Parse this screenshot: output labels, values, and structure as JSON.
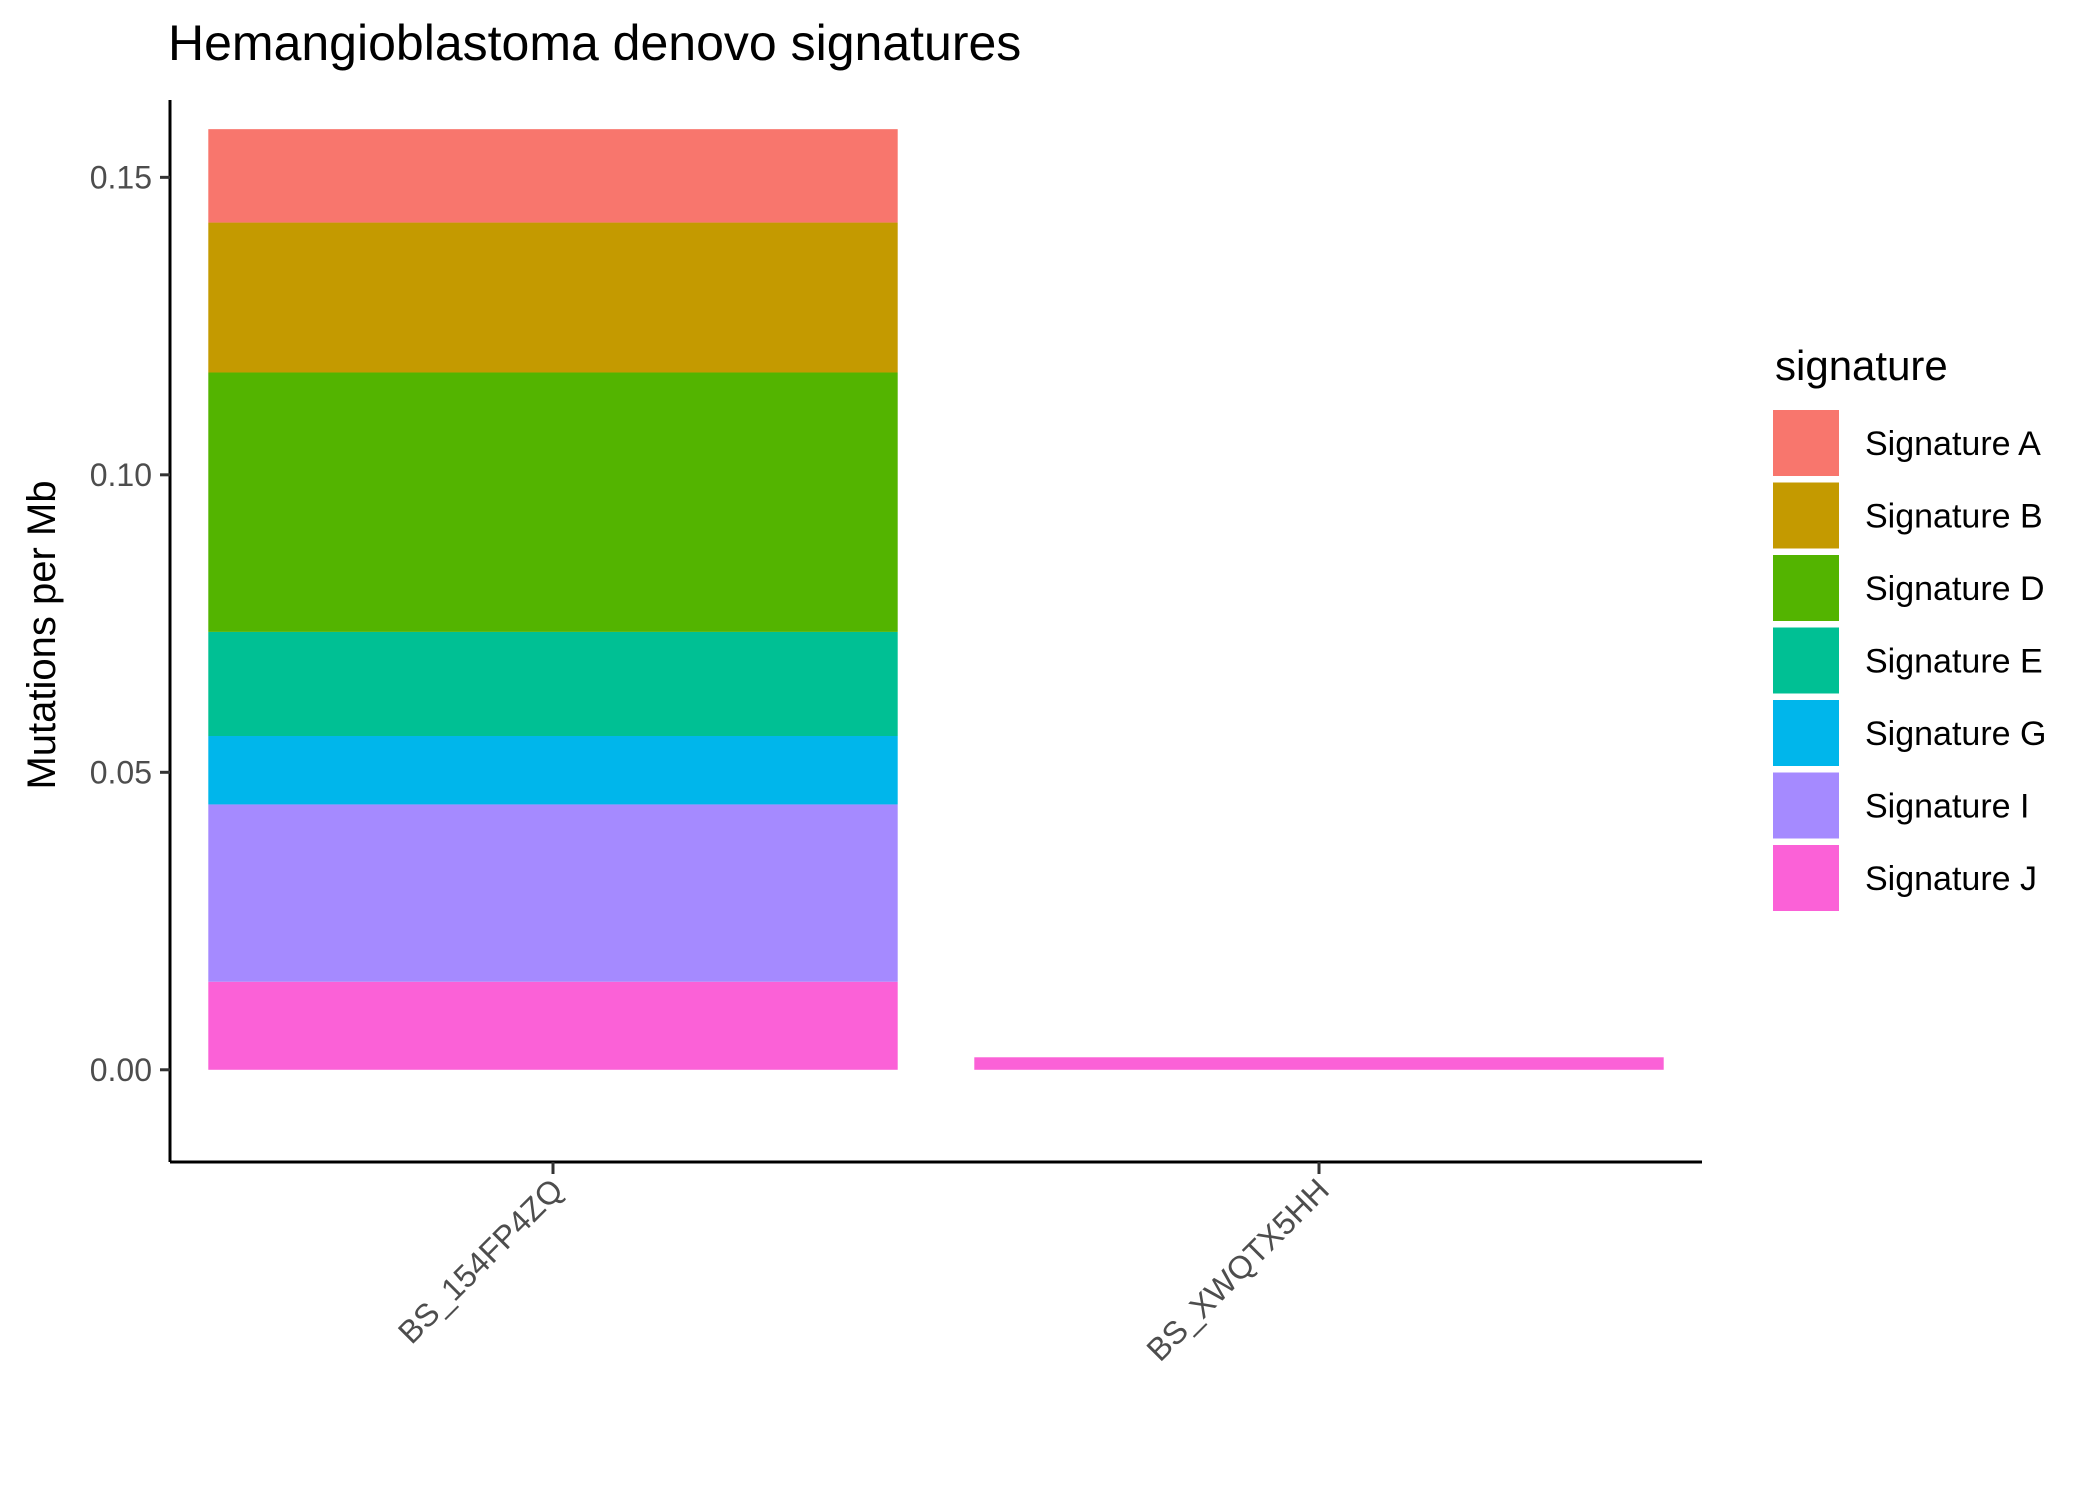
{
  "chart_data": {
    "type": "bar",
    "stacked": true,
    "title": "Hemangioblastoma denovo signatures",
    "xlabel": "",
    "ylabel": "Mutations per Mb",
    "categories": [
      "BS_154FP4ZQ",
      "BS_XWQTX5HH"
    ],
    "ylim": [
      -0.0155,
      0.163
    ],
    "yticks": [
      0.0,
      0.05,
      0.1,
      0.15
    ],
    "ytick_labels": [
      "0.00",
      "0.05",
      "0.10",
      "0.15"
    ],
    "legend": {
      "title": "signature",
      "position": "right"
    },
    "grid": false,
    "series": [
      {
        "name": "Signature A",
        "color": "#F8766D",
        "values": [
          0.0157,
          0
        ]
      },
      {
        "name": "Signature B",
        "color": "#C49A00",
        "values": [
          0.0252,
          0
        ]
      },
      {
        "name": "Signature D",
        "color": "#53B400",
        "values": [
          0.0436,
          0
        ]
      },
      {
        "name": "Signature E",
        "color": "#00C094",
        "values": [
          0.0175,
          0
        ]
      },
      {
        "name": "Signature G",
        "color": "#00B6EB",
        "values": [
          0.0115,
          0
        ]
      },
      {
        "name": "Signature I",
        "color": "#A58AFF",
        "values": [
          0.0298,
          0
        ]
      },
      {
        "name": "Signature J",
        "color": "#FB61D7",
        "values": [
          0.0148,
          0.0021
        ]
      }
    ]
  }
}
